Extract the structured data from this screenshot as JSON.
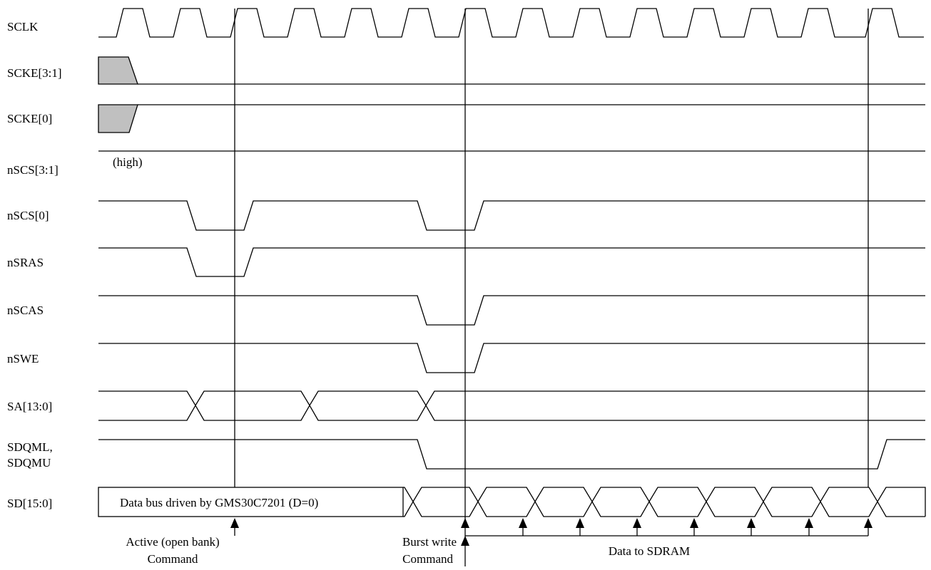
{
  "signals": [
    {
      "key": "sclk",
      "label": "SCLK"
    },
    {
      "key": "scke31",
      "label": "SCKE[3:1]"
    },
    {
      "key": "scke0",
      "label": "SCKE[0]"
    },
    {
      "key": "nscs31",
      "label": "nSCS[3:1]"
    },
    {
      "key": "nscs0",
      "label": "nSCS[0]"
    },
    {
      "key": "nsras",
      "label": "nSRAS"
    },
    {
      "key": "nscas",
      "label": "nSCAS"
    },
    {
      "key": "nswe",
      "label": "nSWE"
    },
    {
      "key": "sa",
      "label": "SA[13:0]"
    },
    {
      "key": "sdqm",
      "label": "SDQML,",
      "label2": "SDQMU"
    },
    {
      "key": "sd",
      "label": "SD[15:0]"
    }
  ],
  "notes": {
    "high": "(high)",
    "sd_bus": "Data bus driven by GMS30C7201 (D=0)"
  },
  "annotations": {
    "active_line1": "Active (open bank)",
    "active_line2": "Command",
    "burst_line1": "Burst write",
    "burst_line2": "Command",
    "data_to": "Data to SDRAM"
  }
}
